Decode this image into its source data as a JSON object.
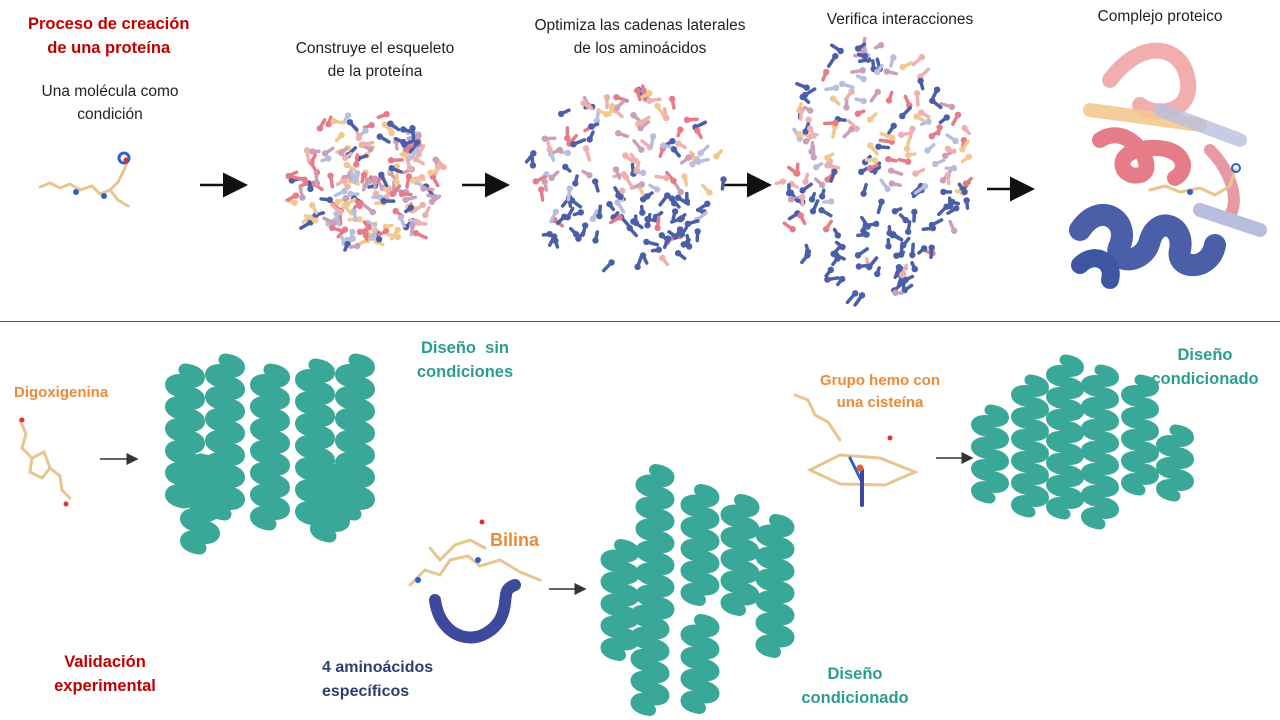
{
  "top": {
    "title": "Proceso de creación\nde una proteína",
    "steps": [
      {
        "label": "Una molécula como\ncondición"
      },
      {
        "label": "Construye el esqueleto\nde la proteína"
      },
      {
        "label": "Optimiza las cadenas laterales\nde los aminoácidos"
      },
      {
        "label": "Verifica interacciones"
      },
      {
        "label": "Complejo proteico"
      }
    ]
  },
  "bottom": {
    "title": "Validación\nexperimental",
    "ligand_1": "Digoxigenina",
    "design_1": "Diseño  sin\ncondiciones",
    "ligand_2": "Bilina",
    "residues_2": "4 aminoácidos\nespecíficos",
    "design_2": "Diseño\ncondicionado",
    "ligand_3": "Grupo hemo con\nuna cisteína",
    "design_3": "Diseño\ncondicionado"
  },
  "colors": {
    "title_red": "#c00000",
    "teal": "#2a9d8f",
    "orange": "#ec8a3a",
    "navy": "#2e3d72",
    "pink": "#e57c88",
    "peach": "#f3c890",
    "blue": "#4a5fa8",
    "ligand": "#f2d3a0"
  }
}
